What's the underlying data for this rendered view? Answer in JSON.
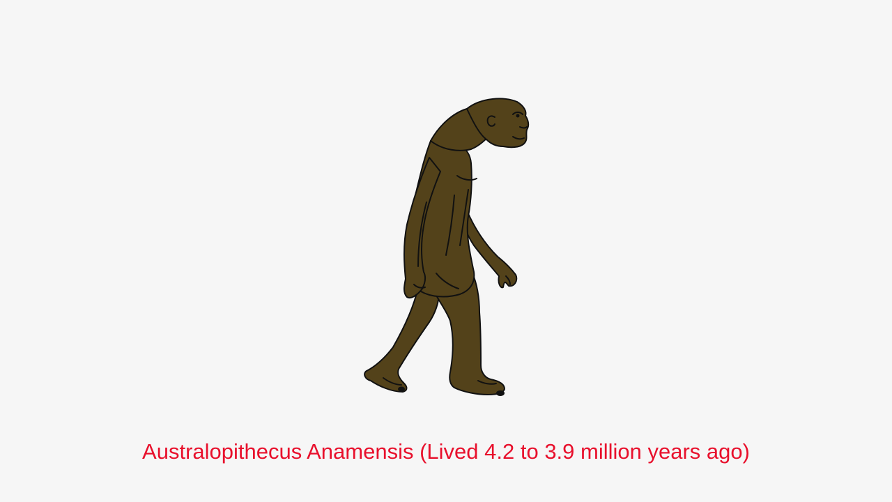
{
  "caption": {
    "text": "Australopithecus Anamensis (Lived 4.2 to 3.9 million years ago)"
  },
  "colors": {
    "background": "#f6f6f6",
    "caption_text": "#e8102c",
    "figure_fill": "#53421a",
    "figure_outline": "#111111"
  },
  "illustration": {
    "icon": "walking-hominin-icon"
  }
}
